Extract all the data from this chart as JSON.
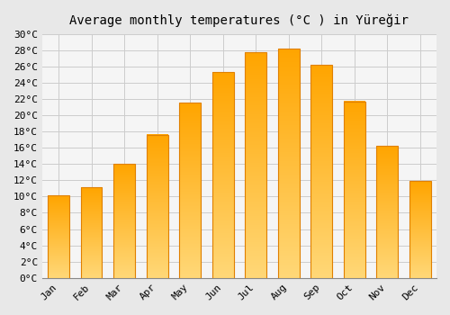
{
  "title": "Average monthly temperatures (°C ) in Yüreğir",
  "months": [
    "Jan",
    "Feb",
    "Mar",
    "Apr",
    "May",
    "Jun",
    "Jul",
    "Aug",
    "Sep",
    "Oct",
    "Nov",
    "Dec"
  ],
  "temperatures": [
    10.1,
    11.1,
    14.0,
    17.6,
    21.5,
    25.3,
    27.7,
    28.2,
    26.2,
    21.7,
    16.2,
    11.9
  ],
  "bar_color_top": "#FFA500",
  "bar_color_bottom": "#FFD878",
  "bar_edge_color": "#E08000",
  "background_color": "#E8E8E8",
  "plot_bg_color": "#F5F5F5",
  "grid_color": "#CCCCCC",
  "ylim": [
    0,
    30
  ],
  "yticks": [
    0,
    2,
    4,
    6,
    8,
    10,
    12,
    14,
    16,
    18,
    20,
    22,
    24,
    26,
    28,
    30
  ],
  "title_fontsize": 10,
  "tick_fontsize": 8,
  "font_family": "monospace"
}
